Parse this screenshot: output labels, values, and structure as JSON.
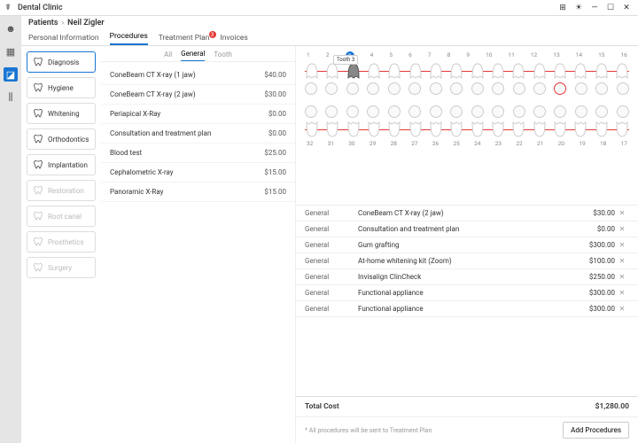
{
  "app_title": "Dental Clinic",
  "window_controls": {
    "box": "⊞",
    "sun": "☀",
    "min": "—",
    "max": "☐",
    "close": "✕"
  },
  "breadcrumb": {
    "root": "Patients",
    "sep": "›",
    "current": "Neil Zigler"
  },
  "tabs": [
    {
      "label": "Personal Information",
      "active": false
    },
    {
      "label": "Procedures",
      "active": true
    },
    {
      "label": "Treatment Plan",
      "active": false,
      "badge": "3"
    },
    {
      "label": "Invoices",
      "active": false
    }
  ],
  "categories": [
    {
      "label": "Diagnosis",
      "active": true,
      "dim": false
    },
    {
      "label": "Hygiene",
      "active": false,
      "dim": false
    },
    {
      "label": "Whitening",
      "active": false,
      "dim": false
    },
    {
      "label": "Orthodontics",
      "active": false,
      "dim": false
    },
    {
      "label": "Implantation",
      "active": false,
      "dim": false
    },
    {
      "label": "Restoration",
      "active": false,
      "dim": true
    },
    {
      "label": "Root canal",
      "active": false,
      "dim": true
    },
    {
      "label": "Prosthetics",
      "active": false,
      "dim": true
    },
    {
      "label": "Surgery",
      "active": false,
      "dim": true
    }
  ],
  "subtabs": [
    {
      "label": "All"
    },
    {
      "label": "General",
      "active": true
    },
    {
      "label": "Tooth"
    }
  ],
  "procedures": [
    {
      "name": "ConeBeam CT X-ray (1 jaw)",
      "price": "$40.00"
    },
    {
      "name": "ConeBeam CT X-ray (2 jaw)",
      "price": "$30.00"
    },
    {
      "name": "Periapical X-Ray",
      "price": "$0.00"
    },
    {
      "name": "Consultation and treatment plan",
      "price": "$0.00"
    },
    {
      "name": "Blood test",
      "price": "$25.00"
    },
    {
      "name": "Cephalometric X-ray",
      "price": "$15.00"
    },
    {
      "name": "Panoramic X-Ray",
      "price": "$15.00"
    }
  ],
  "teeth_top": [
    "1",
    "2",
    "3",
    "4",
    "5",
    "6",
    "7",
    "8",
    "9",
    "10",
    "11",
    "12",
    "13",
    "14",
    "15",
    "16"
  ],
  "teeth_bot": [
    "32",
    "31",
    "30",
    "29",
    "28",
    "27",
    "26",
    "25",
    "24",
    "23",
    "22",
    "21",
    "20",
    "19",
    "18",
    "17"
  ],
  "highlight_top_index": 2,
  "tooltip_label": "Tooth 3",
  "selected": [
    {
      "cat": "General",
      "name": "ConeBeam CT X-ray (2 jaw)",
      "price": "$30.00"
    },
    {
      "cat": "General",
      "name": "Consultation and treatment plan",
      "price": "$0.00"
    },
    {
      "cat": "General",
      "name": "Gum grafting",
      "price": "$300.00"
    },
    {
      "cat": "General",
      "name": "At-home whitening kit (Zoom)",
      "price": "$100.00"
    },
    {
      "cat": "General",
      "name": "Invisalign ClinCheck",
      "price": "$250.00"
    },
    {
      "cat": "General",
      "name": "Functional appliance",
      "price": "$300.00"
    },
    {
      "cat": "General",
      "name": "Functional appliance",
      "price": "$300.00"
    }
  ],
  "total_label": "Total Cost",
  "total_value": "$1,280.00",
  "footer_note": "* All procedures will be sent to Treatment Plan",
  "add_button": "Add Procedures",
  "colors": {
    "accent": "#1976d2",
    "danger": "#e53935"
  }
}
